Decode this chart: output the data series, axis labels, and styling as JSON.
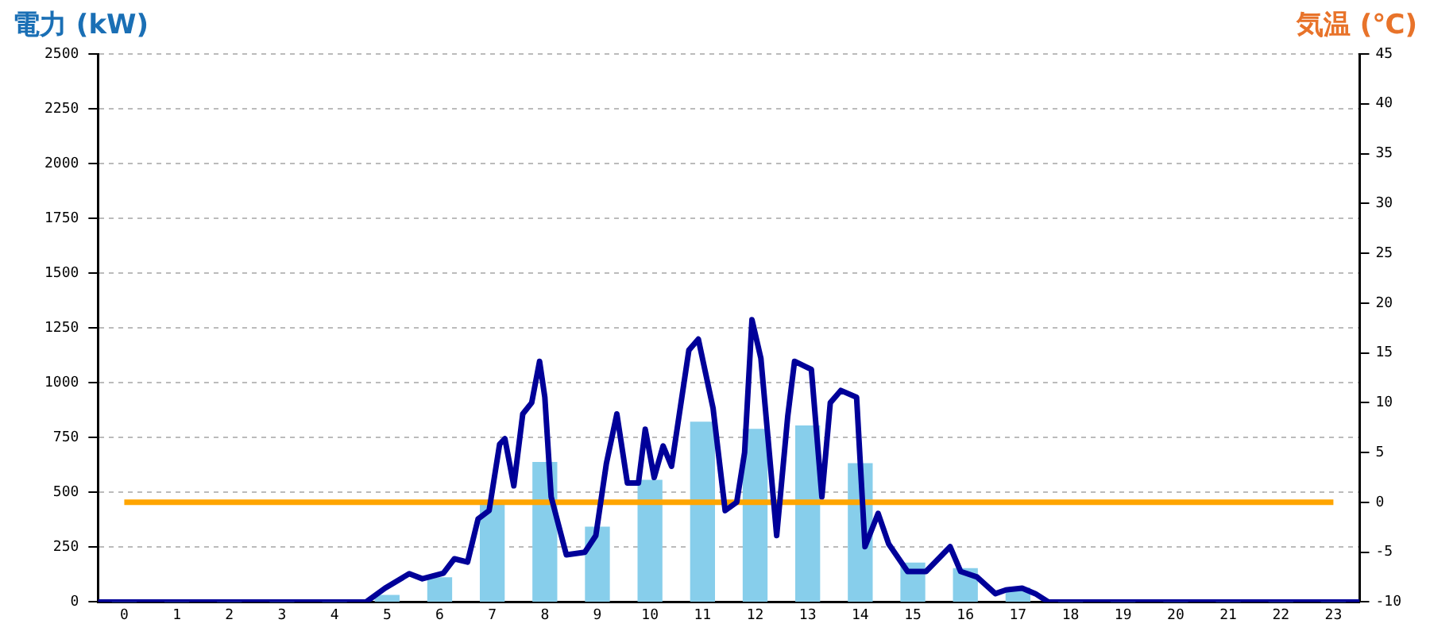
{
  "chart_data": {
    "type": "bar",
    "ylabel": "電力 (kW)",
    "y2label": "気温 (℃)",
    "x": [
      0,
      1,
      2,
      3,
      4,
      5,
      6,
      7,
      8,
      9,
      10,
      11,
      12,
      13,
      14,
      15,
      16,
      17,
      18,
      19,
      20,
      21,
      22,
      23
    ],
    "xlim": [
      -0.5,
      23.5
    ],
    "xticks": [
      0,
      1,
      2,
      3,
      4,
      5,
      6,
      7,
      8,
      9,
      10,
      11,
      12,
      13,
      14,
      15,
      16,
      17,
      18,
      19,
      20,
      21,
      22,
      23
    ],
    "series": [
      {
        "color": "#87ceeb",
        "values": [
          0,
          0,
          0,
          0,
          0,
          30,
          110,
          450,
          636,
          341,
          555,
          820,
          788,
          803,
          631,
          177,
          152,
          63,
          0,
          0,
          0,
          0,
          0,
          0
        ]
      },
      {
        "type": "line",
        "color": "#000099",
        "x": [
          -0.5,
          4.6,
          4.96,
          5.42,
          5.67,
          6.07,
          6.28,
          6.53,
          6.73,
          6.94,
          7.14,
          7.24,
          7.41,
          7.58,
          7.75,
          7.9,
          8.0,
          8.12,
          8.41,
          8.76,
          8.97,
          9.17,
          9.37,
          9.57,
          9.78,
          9.91,
          10.08,
          10.25,
          10.41,
          10.74,
          10.92,
          11.2,
          11.43,
          11.65,
          11.8,
          11.94,
          12.11,
          12.41,
          12.62,
          12.75,
          13.07,
          13.27,
          13.43,
          13.63,
          13.93,
          14.09,
          14.34,
          14.54,
          14.9,
          15.25,
          15.71,
          15.91,
          16.22,
          16.57,
          16.77,
          17.08,
          17.33,
          17.58,
          23.5
        ],
        "values": [
          0,
          0,
          63,
          129,
          106,
          131,
          197,
          182,
          379,
          417,
          720,
          745,
          530,
          858,
          909,
          1098,
          934,
          480,
          215,
          227,
          303,
          631,
          858,
          543,
          543,
          788,
          568,
          712,
          619,
          1149,
          1199,
          884,
          417,
          455,
          682,
          1288,
          1111,
          303,
          846,
          1098,
          1061,
          480,
          909,
          965,
          934,
          252,
          404,
          265,
          139,
          139,
          252,
          139,
          114,
          38,
          55,
          63,
          38,
          0,
          0
        ]
      },
      {
        "type": "line",
        "axis": "y2",
        "color": "#ffa500",
        "values": [
          0,
          0,
          0,
          0,
          0,
          0,
          0,
          0,
          0,
          0,
          0,
          0,
          0,
          0,
          0,
          0,
          0,
          0,
          0,
          0,
          0,
          0,
          0,
          0
        ]
      }
    ],
    "ylim": [
      0,
      2500
    ],
    "yticks": [
      0,
      250,
      500,
      750,
      1000,
      1250,
      1500,
      1750,
      2000,
      2250,
      2500
    ],
    "y2lim": [
      -10,
      45
    ],
    "y2ticks": [
      -10,
      -5,
      0,
      5,
      10,
      15,
      20,
      25,
      30,
      35,
      40,
      45
    ],
    "grid": "y",
    "legend": false,
    "marker": "none",
    "line_style": "solid"
  }
}
